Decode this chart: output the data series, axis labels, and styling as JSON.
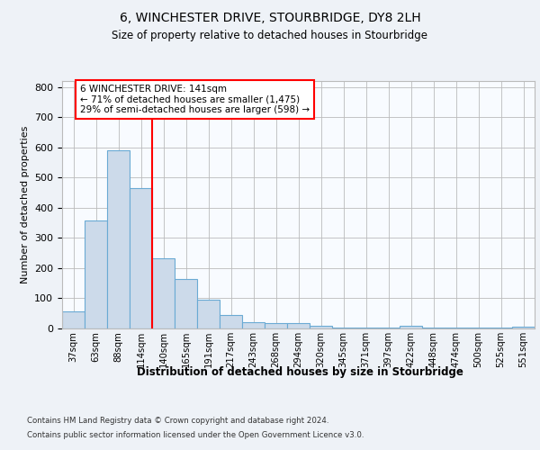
{
  "title1": "6, WINCHESTER DRIVE, STOURBRIDGE, DY8 2LH",
  "title2": "Size of property relative to detached houses in Stourbridge",
  "xlabel": "Distribution of detached houses by size in Stourbridge",
  "ylabel": "Number of detached properties",
  "footnote1": "Contains HM Land Registry data © Crown copyright and database right 2024.",
  "footnote2": "Contains public sector information licensed under the Open Government Licence v3.0.",
  "categories": [
    "37sqm",
    "63sqm",
    "88sqm",
    "114sqm",
    "140sqm",
    "165sqm",
    "191sqm",
    "217sqm",
    "243sqm",
    "268sqm",
    "294sqm",
    "320sqm",
    "345sqm",
    "371sqm",
    "397sqm",
    "422sqm",
    "448sqm",
    "474sqm",
    "500sqm",
    "525sqm",
    "551sqm"
  ],
  "values": [
    58,
    358,
    590,
    465,
    234,
    163,
    95,
    46,
    22,
    18,
    18,
    10,
    2,
    2,
    2,
    10,
    2,
    2,
    2,
    2,
    6
  ],
  "bar_color": "#ccdaea",
  "bar_edge_color": "#6aaad4",
  "property_line_bin": 4,
  "annotation_text": "6 WINCHESTER DRIVE: 141sqm\n← 71% of detached houses are smaller (1,475)\n29% of semi-detached houses are larger (598) →",
  "annotation_box_color": "white",
  "annotation_box_edge_color": "red",
  "line_color": "red",
  "ylim": [
    0,
    820
  ],
  "yticks": [
    0,
    100,
    200,
    300,
    400,
    500,
    600,
    700,
    800
  ],
  "background_color": "#eef2f7",
  "plot_background": "#f8fbff",
  "grid_color": "#bbbbbb"
}
